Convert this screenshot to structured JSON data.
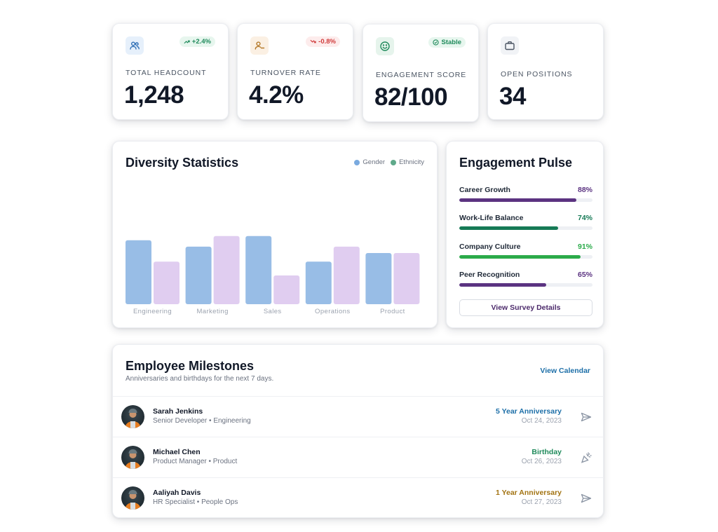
{
  "kpis": [
    {
      "label": "TOTAL HEADCOUNT",
      "value": "1,248",
      "badge": "+2.4%",
      "icon": "users-icon",
      "badge_color": "#1f8a5b",
      "badge_bg": "#e7f6ee"
    },
    {
      "label": "TURNOVER RATE",
      "value": "4.2%",
      "badge": "-0.8%",
      "icon": "user-minus-icon",
      "badge_color": "#d03b3b",
      "badge_bg": "#fdecec"
    },
    {
      "label": "ENGAGEMENT SCORE",
      "value": "82/100",
      "badge": "Stable",
      "icon": "smile-icon",
      "badge_color": "#1f8a5b",
      "badge_bg": "#e7f6ee"
    },
    {
      "label": "OPEN POSITIONS",
      "value": "34",
      "badge": "",
      "icon": "briefcase-icon"
    }
  ],
  "diversity": {
    "title": "Diversity Statistics",
    "legend": [
      {
        "name": "Gender",
        "color": "#7aaadf"
      },
      {
        "name": "Ethnicity",
        "color": "#5fa98a"
      }
    ]
  },
  "chart_data": {
    "type": "bar",
    "categories": [
      "Engineering",
      "Marketing",
      "Sales",
      "Operations",
      "Product"
    ],
    "series": [
      {
        "name": "Gender",
        "values": [
          60,
          54,
          64,
          40,
          48
        ],
        "color": "#98bde6"
      },
      {
        "name": "Ethnicity",
        "values": [
          40,
          64,
          27,
          54,
          48
        ],
        "color": "#e0cdf0"
      }
    ],
    "ylim": [
      0,
      100
    ],
    "grid": false,
    "legend_position": "top-right"
  },
  "pulse": {
    "title": "Engagement Pulse",
    "items": [
      {
        "label": "Career Growth",
        "value": "88%",
        "fraction": 0.88,
        "color": "#5b3381",
        "value_color": "#5b3381"
      },
      {
        "label": "Work-Life Balance",
        "value": "74%",
        "fraction": 0.74,
        "color": "#167a56",
        "value_color": "#167a56"
      },
      {
        "label": "Company Culture",
        "value": "91%",
        "fraction": 0.91,
        "color": "#2bab4a",
        "value_color": "#2bab4a"
      },
      {
        "label": "Peer Recognition",
        "value": "65%",
        "fraction": 0.65,
        "color": "#5b3381",
        "value_color": "#5b3381"
      }
    ],
    "button_label": "View Survey Details"
  },
  "milestones": {
    "title": "Employee Milestones",
    "subtitle": "Anniversaries and birthdays for the next 7 days.",
    "link_label": "View Calendar",
    "rows": [
      {
        "name": "Sarah Jenkins",
        "role": "Senior Developer • Engineering",
        "event": "5 Year Anniversary",
        "event_color": "#1d6fa8",
        "date": "Oct 24, 2023",
        "action_icon": "send-icon"
      },
      {
        "name": "Michael Chen",
        "role": "Product Manager • Product",
        "event": "Birthday",
        "event_color": "#1f8a5b",
        "date": "Oct 26, 2023",
        "action_icon": "party-popper-icon"
      },
      {
        "name": "Aaliyah Davis",
        "role": "HR Specialist • People Ops",
        "event": "1 Year Anniversary",
        "event_color": "#a27312",
        "date": "Oct 27, 2023",
        "action_icon": "send-icon"
      }
    ]
  }
}
